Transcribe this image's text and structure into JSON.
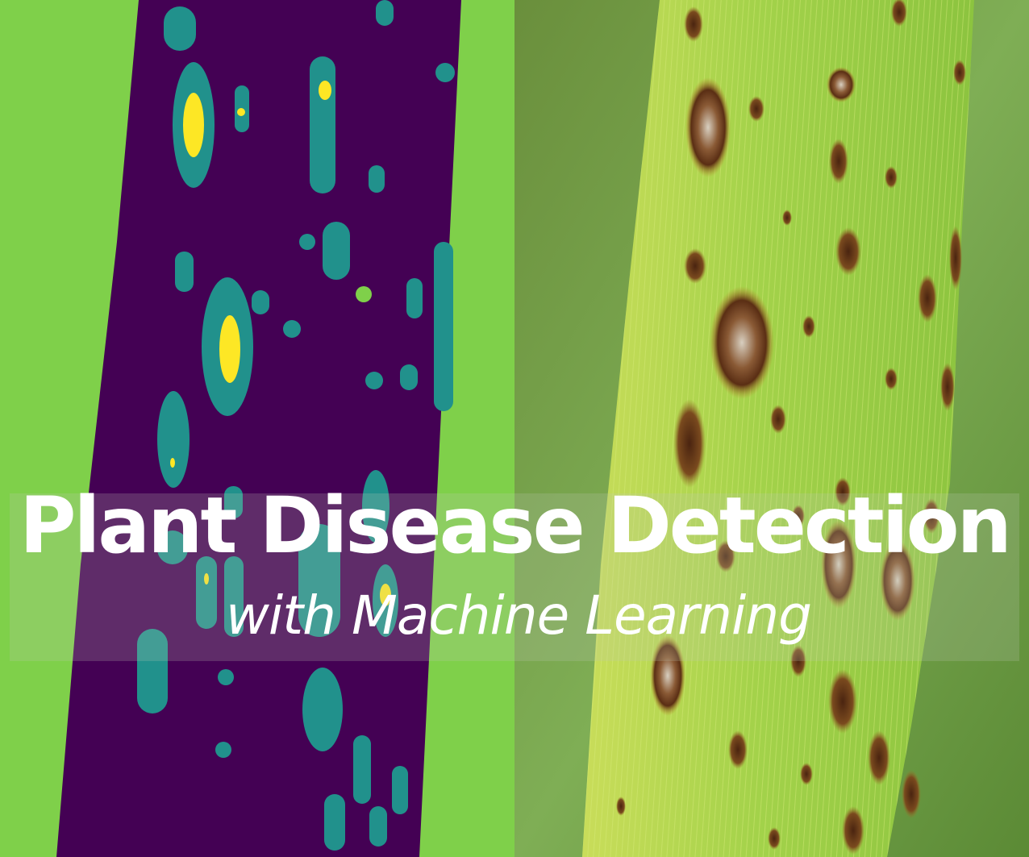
{
  "title": "Plant Disease Detection",
  "subtitle": "with Machine Learning",
  "colors": {
    "background_green": "#7fd04a",
    "mask_leaf": "#440154",
    "mask_lesion_halo": "#21918c",
    "mask_lesion_core": "#fde725",
    "photo_leaf": "#a7d44a",
    "photo_lesion": "#6b3a1a"
  },
  "panels": {
    "left": "segmentation-mask",
    "right": "leaf-photo"
  }
}
